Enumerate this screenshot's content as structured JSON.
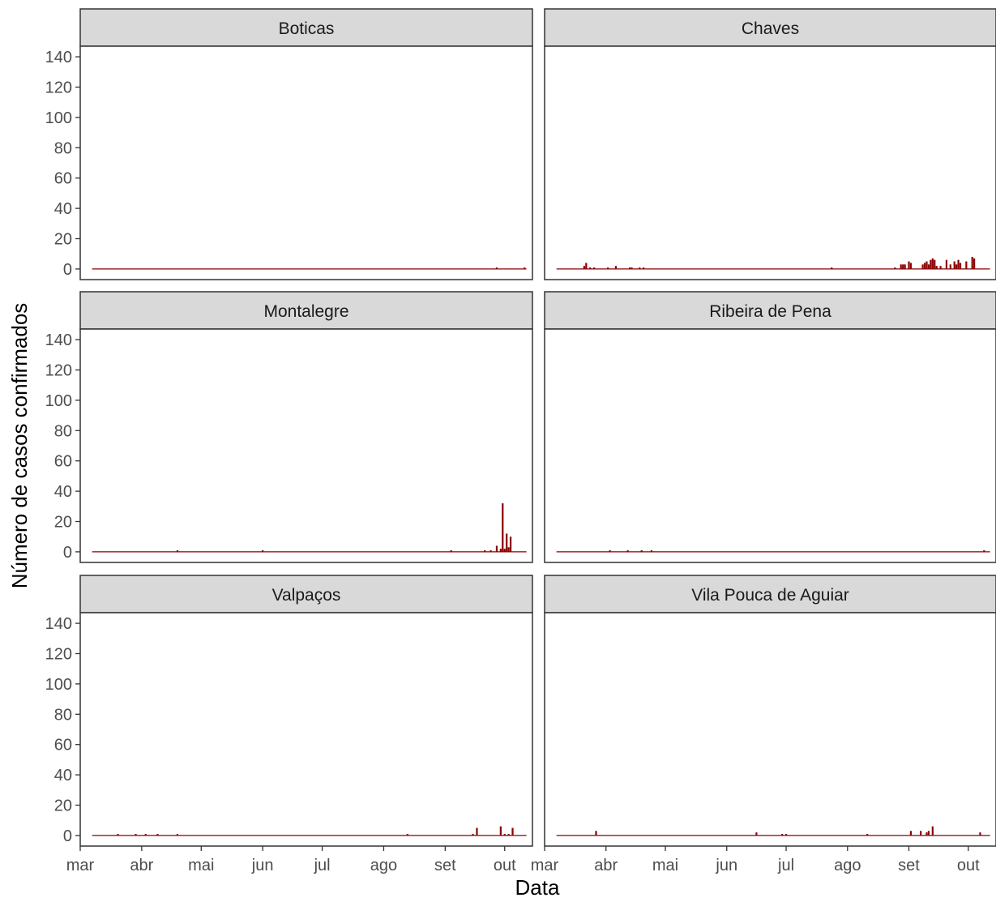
{
  "chart_data": {
    "type": "bar",
    "ylabel": "Número de casos confirmados",
    "xlabel": "Data",
    "ylim": [
      -7,
      147
    ],
    "yticks": [
      0,
      20,
      40,
      60,
      80,
      100,
      120,
      140
    ],
    "x_domain": [
      "2020-03-01",
      "2020-10-15"
    ],
    "xticks": [
      {
        "label": "mar",
        "date": "2020-03-01"
      },
      {
        "label": "abr",
        "date": "2020-04-01"
      },
      {
        "label": "mai",
        "date": "2020-05-01"
      },
      {
        "label": "jun",
        "date": "2020-06-01"
      },
      {
        "label": "jul",
        "date": "2020-07-01"
      },
      {
        "label": "ago",
        "date": "2020-08-01"
      },
      {
        "label": "set",
        "date": "2020-09-01"
      },
      {
        "label": "out",
        "date": "2020-10-01"
      }
    ],
    "baseline_range": [
      "2020-03-07",
      "2020-10-12"
    ],
    "bar_color": "#8B0000",
    "panel_strip_color": "#D9D9D9",
    "grid": false,
    "panels": [
      {
        "name": "Boticas",
        "bars": [
          {
            "x": "2020-09-27",
            "y": 1
          },
          {
            "x": "2020-10-11",
            "y": 1
          }
        ]
      },
      {
        "name": "Chaves",
        "bars": [
          {
            "x": "2020-03-21",
            "y": 2
          },
          {
            "x": "2020-03-22",
            "y": 4
          },
          {
            "x": "2020-03-24",
            "y": 1
          },
          {
            "x": "2020-03-26",
            "y": 1
          },
          {
            "x": "2020-04-02",
            "y": 1
          },
          {
            "x": "2020-04-06",
            "y": 2
          },
          {
            "x": "2020-04-13",
            "y": 1
          },
          {
            "x": "2020-04-14",
            "y": 1
          },
          {
            "x": "2020-04-18",
            "y": 1
          },
          {
            "x": "2020-04-20",
            "y": 1
          },
          {
            "x": "2020-07-24",
            "y": 1
          },
          {
            "x": "2020-08-25",
            "y": 1
          },
          {
            "x": "2020-08-28",
            "y": 3
          },
          {
            "x": "2020-08-29",
            "y": 3
          },
          {
            "x": "2020-08-30",
            "y": 3
          },
          {
            "x": "2020-09-01",
            "y": 5
          },
          {
            "x": "2020-09-02",
            "y": 4
          },
          {
            "x": "2020-09-08",
            "y": 3
          },
          {
            "x": "2020-09-09",
            "y": 4
          },
          {
            "x": "2020-09-10",
            "y": 5
          },
          {
            "x": "2020-09-11",
            "y": 3
          },
          {
            "x": "2020-09-12",
            "y": 6
          },
          {
            "x": "2020-09-13",
            "y": 7
          },
          {
            "x": "2020-09-14",
            "y": 6
          },
          {
            "x": "2020-09-15",
            "y": 2
          },
          {
            "x": "2020-09-17",
            "y": 2
          },
          {
            "x": "2020-09-20",
            "y": 6
          },
          {
            "x": "2020-09-22",
            "y": 3
          },
          {
            "x": "2020-09-24",
            "y": 5
          },
          {
            "x": "2020-09-25",
            "y": 3
          },
          {
            "x": "2020-09-26",
            "y": 6
          },
          {
            "x": "2020-09-27",
            "y": 4
          },
          {
            "x": "2020-09-30",
            "y": 5
          },
          {
            "x": "2020-10-03",
            "y": 8
          },
          {
            "x": "2020-10-04",
            "y": 7
          }
        ]
      },
      {
        "name": "Montalegre",
        "bars": [
          {
            "x": "2020-04-19",
            "y": 1
          },
          {
            "x": "2020-06-01",
            "y": 1
          },
          {
            "x": "2020-09-04",
            "y": 1
          },
          {
            "x": "2020-09-21",
            "y": 1
          },
          {
            "x": "2020-09-24",
            "y": 1
          },
          {
            "x": "2020-09-27",
            "y": 4
          },
          {
            "x": "2020-09-29",
            "y": 2
          },
          {
            "x": "2020-09-30",
            "y": 32
          },
          {
            "x": "2020-10-01",
            "y": 2
          },
          {
            "x": "2020-10-02",
            "y": 12
          },
          {
            "x": "2020-10-03",
            "y": 3
          },
          {
            "x": "2020-10-04",
            "y": 10
          }
        ]
      },
      {
        "name": "Ribeira de Pena",
        "bars": [
          {
            "x": "2020-04-03",
            "y": 1
          },
          {
            "x": "2020-04-12",
            "y": 1
          },
          {
            "x": "2020-04-19",
            "y": 1
          },
          {
            "x": "2020-04-24",
            "y": 1
          },
          {
            "x": "2020-10-09",
            "y": 1
          }
        ]
      },
      {
        "name": "Valpaços",
        "bars": [
          {
            "x": "2020-03-20",
            "y": 1
          },
          {
            "x": "2020-03-29",
            "y": 1
          },
          {
            "x": "2020-04-03",
            "y": 1
          },
          {
            "x": "2020-04-09",
            "y": 1
          },
          {
            "x": "2020-04-19",
            "y": 1
          },
          {
            "x": "2020-08-13",
            "y": 1
          },
          {
            "x": "2020-09-15",
            "y": 1
          },
          {
            "x": "2020-09-17",
            "y": 5
          },
          {
            "x": "2020-09-29",
            "y": 6
          },
          {
            "x": "2020-10-01",
            "y": 1
          },
          {
            "x": "2020-10-03",
            "y": 1
          },
          {
            "x": "2020-10-05",
            "y": 5
          }
        ]
      },
      {
        "name": "Vila Pouca de Aguiar",
        "bars": [
          {
            "x": "2020-03-27",
            "y": 3
          },
          {
            "x": "2020-06-16",
            "y": 2
          },
          {
            "x": "2020-06-29",
            "y": 1
          },
          {
            "x": "2020-07-01",
            "y": 1
          },
          {
            "x": "2020-08-11",
            "y": 1
          },
          {
            "x": "2020-09-02",
            "y": 3
          },
          {
            "x": "2020-09-07",
            "y": 3
          },
          {
            "x": "2020-09-10",
            "y": 2
          },
          {
            "x": "2020-09-11",
            "y": 3
          },
          {
            "x": "2020-09-13",
            "y": 6
          },
          {
            "x": "2020-10-07",
            "y": 2
          }
        ]
      }
    ]
  }
}
